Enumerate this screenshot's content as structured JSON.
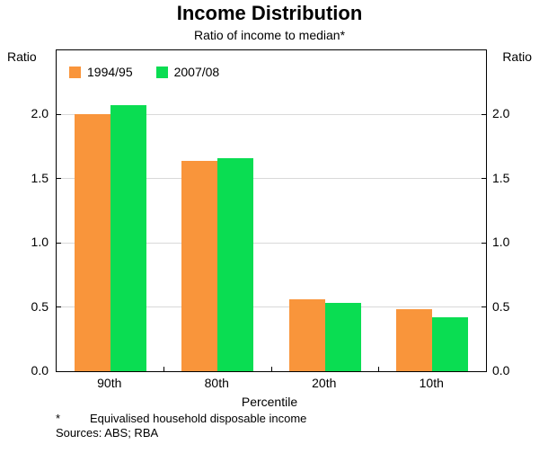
{
  "title": "Income Distribution",
  "subtitle": "Ratio of income to median*",
  "axis_label_left": "Ratio",
  "axis_label_right": "Ratio",
  "xlabel": "Percentile",
  "footnote_marker": "*",
  "footnote_text": "Equivalised household disposable income",
  "sources": "Sources: ABS; RBA",
  "chart_data": {
    "type": "bar",
    "title": "Income Distribution",
    "subtitle": "Ratio of income to median*",
    "xlabel": "Percentile",
    "ylabel": "Ratio",
    "categories": [
      "90th",
      "80th",
      "20th",
      "10th"
    ],
    "series": [
      {
        "name": "1994/95",
        "color": "#F9953B",
        "values": [
          2.0,
          1.64,
          0.56,
          0.48
        ]
      },
      {
        "name": "2007/08",
        "color": "#0ADD52",
        "values": [
          2.07,
          1.66,
          0.53,
          0.42
        ]
      }
    ],
    "ylim": [
      0,
      2.5
    ],
    "yticks": [
      0.0,
      0.5,
      1.0,
      1.5,
      2.0
    ],
    "grid": true,
    "legend_position": "top-left"
  }
}
